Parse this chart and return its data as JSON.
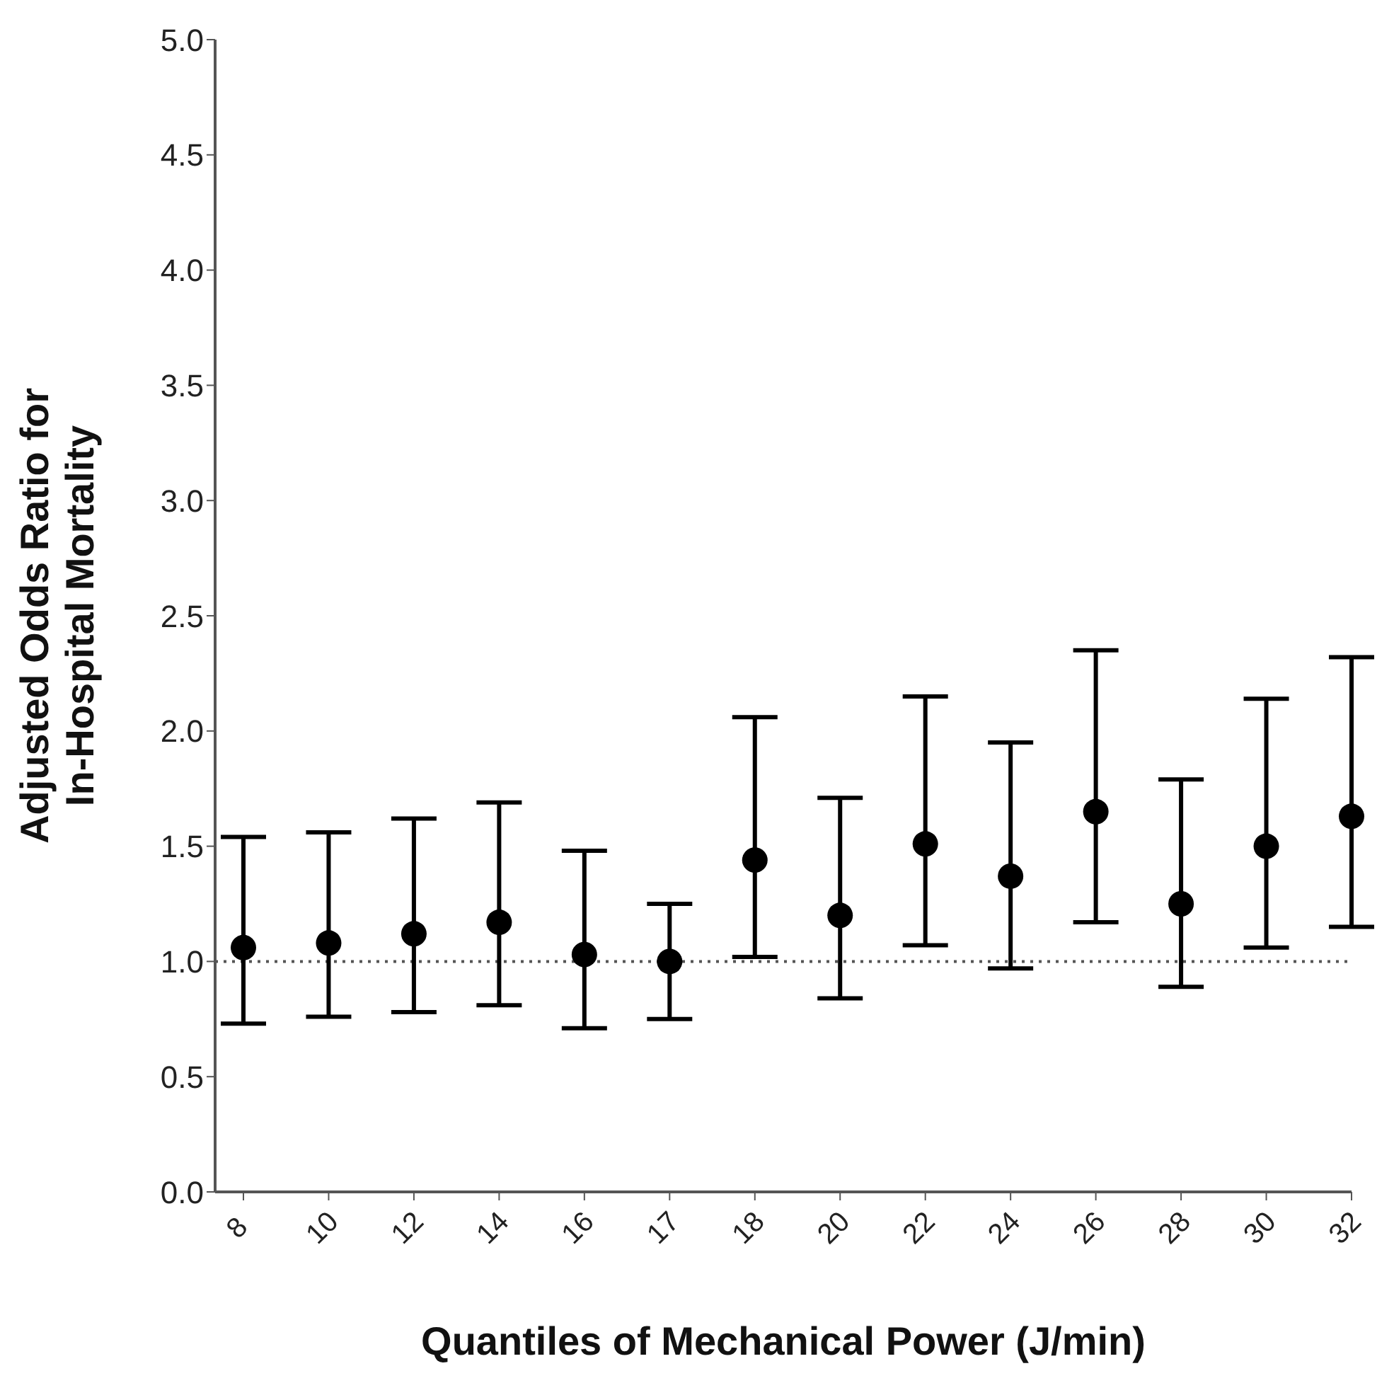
{
  "chart_data": {
    "type": "scatter",
    "xlabel": "Quantiles of Mechanical Power (J/min)",
    "ylabel": "Adjusted Odds Ratio for\nIn-Hospital  Mortality",
    "categories": [
      "8",
      "10",
      "12",
      "14",
      "16",
      "17",
      "18",
      "20",
      "22",
      "24",
      "26",
      "28",
      "30",
      "32"
    ],
    "series": [
      {
        "color": "#000000",
        "values": [
          1.06,
          1.08,
          1.12,
          1.17,
          1.03,
          1.0,
          1.44,
          1.2,
          1.51,
          1.37,
          1.65,
          1.25,
          1.5,
          1.63
        ],
        "errors": [
          [
            0.73,
            1.54
          ],
          [
            0.76,
            1.56
          ],
          [
            0.78,
            1.62
          ],
          [
            0.81,
            1.69
          ],
          [
            0.71,
            1.48
          ],
          [
            0.75,
            1.25
          ],
          [
            1.02,
            2.06
          ],
          [
            0.84,
            1.71
          ],
          [
            1.07,
            2.15
          ],
          [
            0.97,
            1.95
          ],
          [
            1.17,
            2.35
          ],
          [
            0.89,
            1.79
          ],
          [
            1.06,
            2.14
          ],
          [
            1.15,
            2.32
          ]
        ]
      }
    ],
    "ylim": [
      0,
      5
    ],
    "yticks": [
      {
        "value": 0,
        "label": "0.0"
      },
      {
        "value": 0.5,
        "label": "0.5"
      },
      {
        "value": 1,
        "label": "1.0"
      },
      {
        "value": 1.5,
        "label": "1.5"
      },
      {
        "value": 2,
        "label": "2.0"
      },
      {
        "value": 2.5,
        "label": "2.5"
      },
      {
        "value": 3,
        "label": "3.0"
      },
      {
        "value": 3.5,
        "label": "3.5"
      },
      {
        "value": 4,
        "label": "4.0"
      },
      {
        "value": 4.5,
        "label": "4.5"
      },
      {
        "value": 5,
        "label": "5.0"
      }
    ],
    "ref_lines": [
      {
        "axis": "y",
        "value": 1,
        "line_style": "dotted",
        "color": "#555555"
      }
    ],
    "marker": "circle"
  }
}
